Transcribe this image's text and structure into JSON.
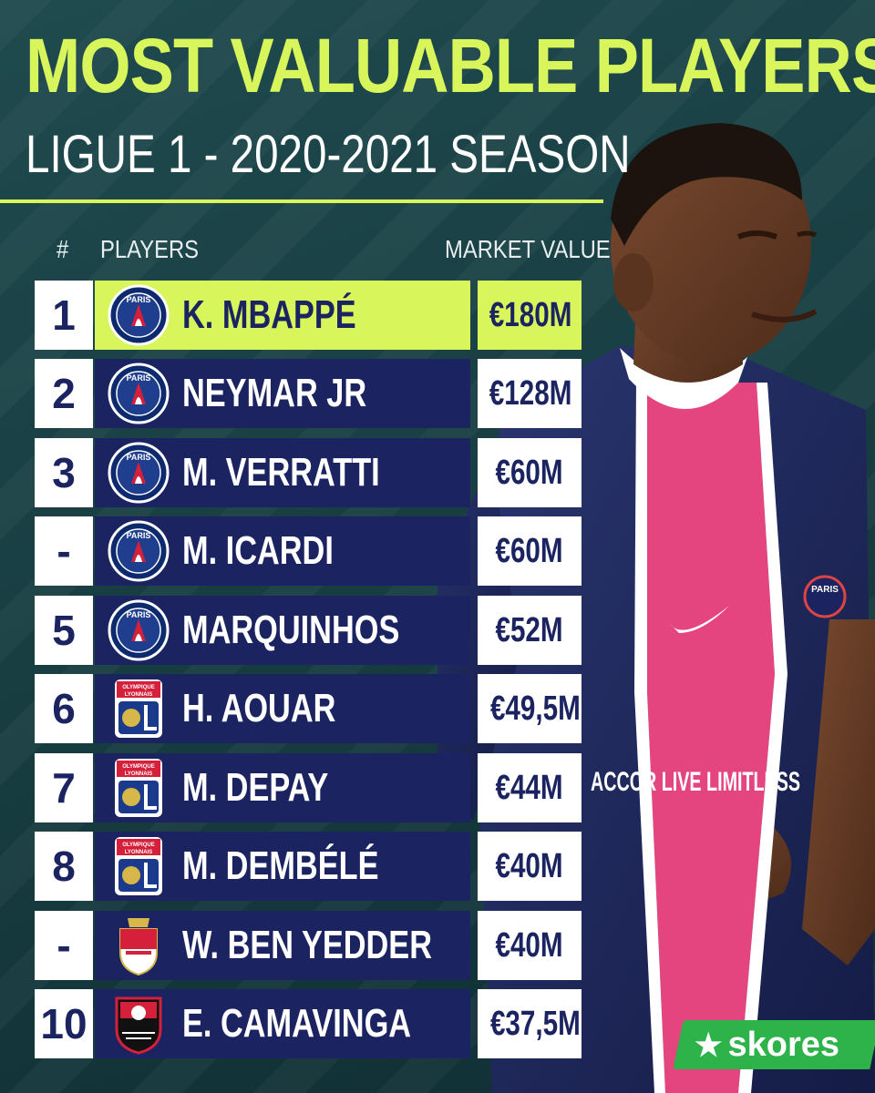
{
  "title": "MOST VALUABLE PLAYERS",
  "subtitle": "LIGUE 1 - 2020-2021 SEASON",
  "headers": {
    "rank": "#",
    "players": "PLAYERS",
    "value": "MARKET VALUE"
  },
  "players": [
    {
      "rank": "1",
      "name": "K. MBAPPÉ",
      "value": "€180M",
      "club_crest": "psg-crest"
    },
    {
      "rank": "2",
      "name": "NEYMAR JR",
      "value": "€128M",
      "club_crest": "psg-crest"
    },
    {
      "rank": "3",
      "name": "M. VERRATTI",
      "value": "€60M",
      "club_crest": "psg-crest"
    },
    {
      "rank": "-",
      "name": "M. ICARDI",
      "value": "€60M",
      "club_crest": "psg-crest"
    },
    {
      "rank": "5",
      "name": "MARQUINHOS",
      "value": "€52M",
      "club_crest": "psg-crest"
    },
    {
      "rank": "6",
      "name": "H. AOUAR",
      "value": "€49,5M",
      "club_crest": "lyon-crest"
    },
    {
      "rank": "7",
      "name": "M. DEPAY",
      "value": "€44M",
      "club_crest": "lyon-crest"
    },
    {
      "rank": "8",
      "name": "M. DEMBÉLÉ",
      "value": "€40M",
      "club_crest": "lyon-crest"
    },
    {
      "rank": "-",
      "name": "W. BEN YEDDER",
      "value": "€40M",
      "club_crest": "monaco-crest"
    },
    {
      "rank": "10",
      "name": "E. CAMAVINGA",
      "value": "€37,5M",
      "club_crest": "rennes-crest"
    }
  ],
  "crest_text": {
    "psg_top": "PARIS",
    "lyon_top": "OLYMPIQUE",
    "lyon_bottom": "LYONNAIS"
  },
  "jersey": {
    "sponsor": "ACCOR LIVE LIMITLESS",
    "badge": "PARIS"
  },
  "brand": {
    "name": "skores",
    "star_icon": "star-icon"
  },
  "colors": {
    "accent": "#d8f65c",
    "navy": "#1b2460",
    "background": "#1f4a4e",
    "brand_green": "#2db34a"
  }
}
